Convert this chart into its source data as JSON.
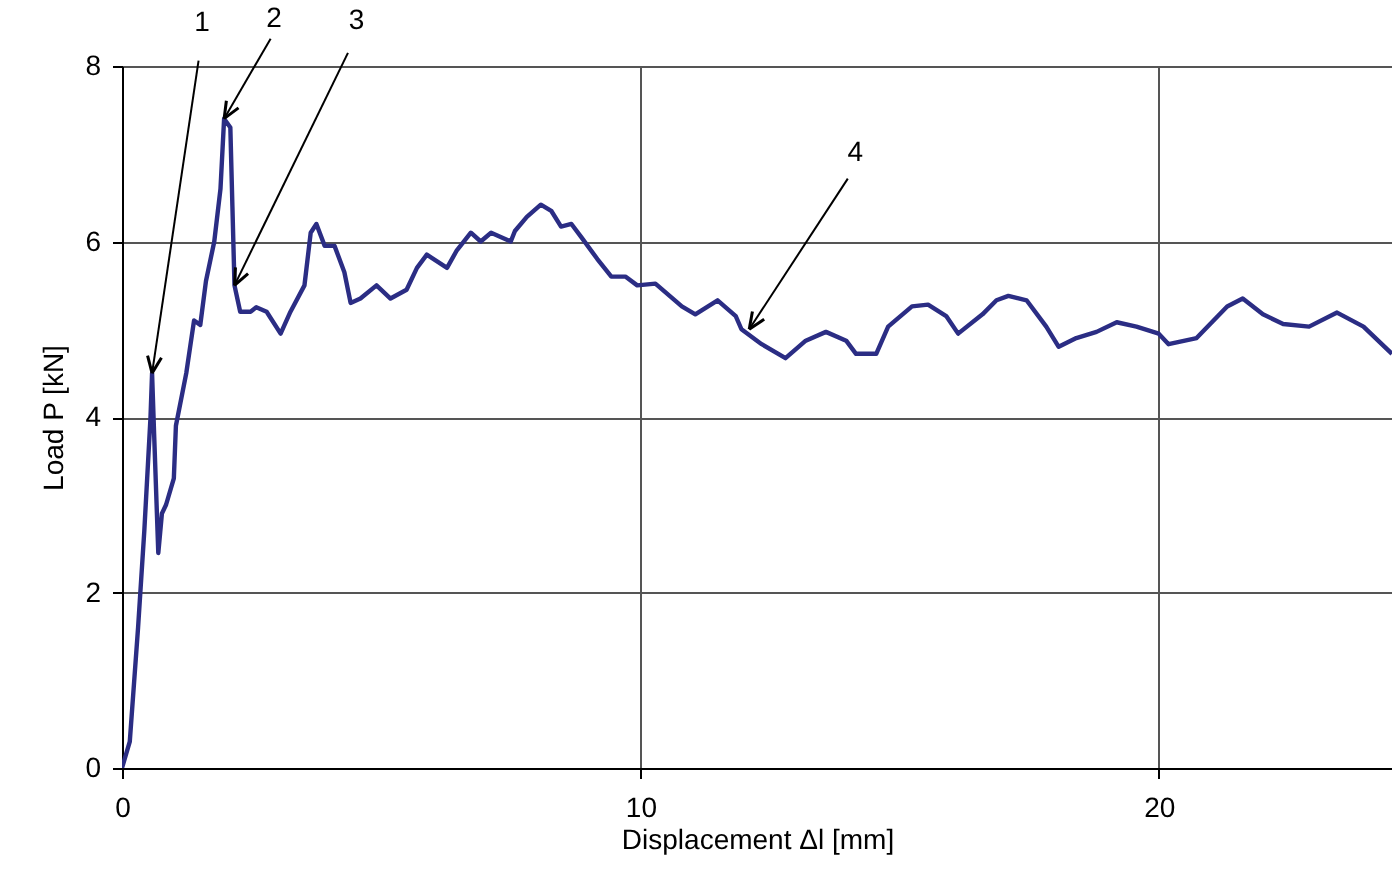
{
  "chart_data": {
    "type": "line",
    "xlabel": "Displacement Δl [mm]",
    "ylabel": "Load P [kN]",
    "xlim": [
      0,
      24.5
    ],
    "ylim": [
      0,
      8
    ],
    "xticks": [
      0,
      10,
      20
    ],
    "yticks": [
      0,
      2,
      4,
      6,
      8
    ],
    "grid": true,
    "marker": "none",
    "line_style": "solid",
    "series": [
      {
        "color": "#2b2d84",
        "x": [
          0,
          0.15,
          0.31,
          0.43,
          0.55,
          0.58,
          0.62,
          0.7,
          0.77,
          0.85,
          1.0,
          1.04,
          1.24,
          1.39,
          1.51,
          1.62,
          1.78,
          1.9,
          1.97,
          2.09,
          2.13,
          2.17,
          2.28,
          2.48,
          2.59,
          2.79,
          3.06,
          3.25,
          3.52,
          3.64,
          3.75,
          3.91,
          4.1,
          4.29,
          4.41,
          4.6,
          4.91,
          5.18,
          5.49,
          5.69,
          5.88,
          6.27,
          6.46,
          6.73,
          6.92,
          7.12,
          7.5,
          7.58,
          7.81,
          8.08,
          8.28,
          8.47,
          8.67,
          8.86,
          9.17,
          9.44,
          9.71,
          9.94,
          10.29,
          10.8,
          11.06,
          11.49,
          11.84,
          11.95,
          12.34,
          12.8,
          13.19,
          13.58,
          13.97,
          14.16,
          14.55,
          14.78,
          15.24,
          15.55,
          15.9,
          16.13,
          16.6,
          16.87,
          17.1,
          17.45,
          17.83,
          18.07,
          18.41,
          18.8,
          19.19,
          19.57,
          20.0,
          20.19,
          20.73,
          21.32,
          21.62,
          22.01,
          22.4,
          22.9,
          23.44,
          23.95,
          24.5
        ],
        "values": [
          0,
          0.3,
          1.6,
          2.7,
          4.0,
          4.5,
          3.8,
          2.45,
          2.9,
          3.0,
          3.3,
          3.9,
          4.5,
          5.1,
          5.05,
          5.55,
          6.0,
          6.6,
          7.4,
          7.3,
          6.4,
          5.5,
          5.2,
          5.2,
          5.25,
          5.2,
          4.95,
          5.2,
          5.5,
          6.1,
          6.2,
          5.95,
          5.95,
          5.65,
          5.3,
          5.35,
          5.5,
          5.35,
          5.45,
          5.7,
          5.85,
          5.7,
          5.9,
          6.1,
          6.0,
          6.1,
          6.0,
          6.12,
          6.28,
          6.42,
          6.35,
          6.17,
          6.2,
          6.05,
          5.8,
          5.6,
          5.6,
          5.5,
          5.52,
          5.26,
          5.17,
          5.33,
          5.15,
          5.0,
          4.83,
          4.67,
          4.87,
          4.97,
          4.87,
          4.72,
          4.72,
          5.03,
          5.26,
          5.28,
          5.15,
          4.95,
          5.17,
          5.33,
          5.38,
          5.33,
          5.03,
          4.8,
          4.9,
          4.97,
          5.08,
          5.03,
          4.95,
          4.83,
          4.9,
          5.26,
          5.35,
          5.17,
          5.06,
          5.03,
          5.19,
          5.03,
          4.72
        ]
      }
    ],
    "annotations": [
      {
        "text": "1",
        "x": 0.58,
        "y": 4.5
      },
      {
        "text": "2",
        "x": 1.97,
        "y": 7.4
      },
      {
        "text": "3",
        "x": 2.17,
        "y": 5.5
      },
      {
        "text": "4",
        "x": 12.1,
        "y": 5.0
      }
    ]
  }
}
